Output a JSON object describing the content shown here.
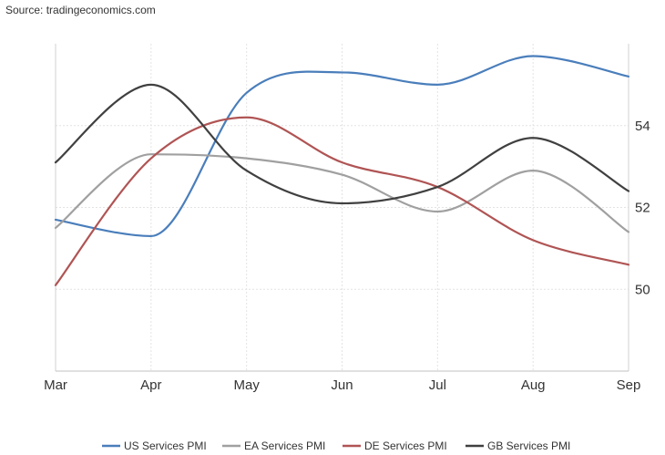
{
  "source": "Source: tradingeconomics.com",
  "chart_data": {
    "type": "line",
    "categories": [
      "Mar",
      "Apr",
      "May",
      "Jun",
      "Jul",
      "Aug",
      "Sep"
    ],
    "ylim": [
      48,
      56
    ],
    "y_ticks": [
      50,
      52,
      54
    ],
    "y_axis_position": "right",
    "grid": true,
    "legend_placement": "bottom",
    "series": [
      {
        "name": "US Services PMI",
        "color": "#4a7ebb",
        "values": [
          51.7,
          51.3,
          54.8,
          55.3,
          55.0,
          55.7,
          55.2
        ]
      },
      {
        "name": "EA Services PMI",
        "color": "#a0a0a0",
        "values": [
          51.5,
          53.3,
          53.2,
          52.8,
          51.9,
          52.9,
          51.4
        ]
      },
      {
        "name": "DE Services PMI",
        "color": "#b05454",
        "values": [
          50.1,
          53.2,
          54.2,
          53.1,
          52.5,
          51.2,
          50.6
        ]
      },
      {
        "name": "GB Services PMI",
        "color": "#404040",
        "values": [
          53.1,
          55.0,
          52.9,
          52.1,
          52.5,
          53.7,
          52.4
        ]
      }
    ]
  }
}
